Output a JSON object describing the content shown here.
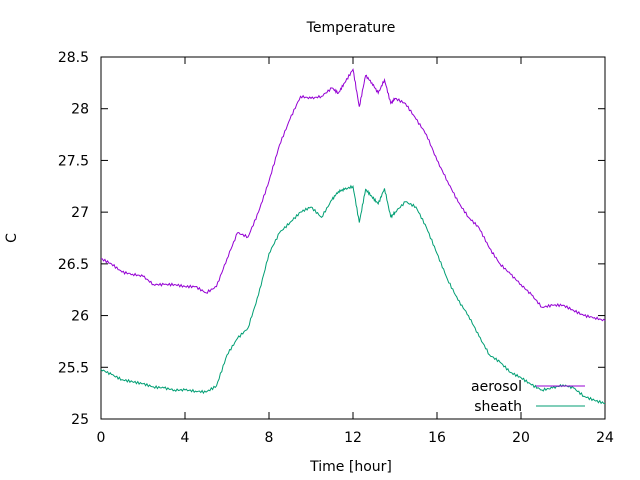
{
  "chart_data": {
    "type": "line",
    "title": "Temperature",
    "xlabel": "Time [hour]",
    "ylabel": "C",
    "xlim": [
      0,
      24
    ],
    "ylim": [
      25,
      28.5
    ],
    "xticks": [
      0,
      4,
      8,
      12,
      16,
      20,
      24
    ],
    "yticks": [
      25,
      25.5,
      26,
      26.5,
      27,
      27.5,
      28,
      28.5
    ],
    "xtick_labels": [
      "0",
      "4",
      "8",
      "12",
      "16",
      "20",
      "24"
    ],
    "ytick_labels": [
      "25",
      "25.5",
      "26",
      "26.5",
      "27",
      "27.5",
      "28",
      "28.5"
    ],
    "grid": false,
    "legend_position": "bottom-right",
    "series": [
      {
        "name": "aerosol",
        "color": "#9400d3",
        "x": [
          0,
          0.5,
          1,
          1.5,
          2,
          2.5,
          3,
          3.5,
          4,
          4.5,
          5,
          5.5,
          6,
          6.5,
          7,
          7.5,
          8,
          8.5,
          9,
          9.5,
          10,
          10.5,
          11,
          11.3,
          11.6,
          12,
          12.3,
          12.6,
          12.9,
          13.2,
          13.5,
          13.8,
          14,
          14.5,
          15,
          15.5,
          16,
          16.5,
          17,
          17.5,
          18,
          18.5,
          19,
          19.5,
          20,
          20.5,
          21,
          21.5,
          22,
          22.5,
          23,
          23.5,
          24
        ],
        "y": [
          26.55,
          26.5,
          26.42,
          26.4,
          26.38,
          26.3,
          26.3,
          26.3,
          26.28,
          26.28,
          26.22,
          26.28,
          26.55,
          26.8,
          26.76,
          27.0,
          27.3,
          27.65,
          27.9,
          28.12,
          28.1,
          28.12,
          28.2,
          28.15,
          28.25,
          28.38,
          28.02,
          28.32,
          28.25,
          28.15,
          28.28,
          28.05,
          28.1,
          28.05,
          27.9,
          27.75,
          27.5,
          27.3,
          27.1,
          26.95,
          26.85,
          26.65,
          26.5,
          26.4,
          26.3,
          26.2,
          26.08,
          26.1,
          26.1,
          26.05,
          26.0,
          25.98,
          25.95
        ]
      },
      {
        "name": "sheath",
        "color": "#009e73",
        "x": [
          0,
          0.5,
          1,
          1.5,
          2,
          2.5,
          3,
          3.5,
          4,
          4.5,
          5,
          5.5,
          6,
          6.5,
          7,
          7.5,
          8,
          8.5,
          9,
          9.5,
          10,
          10.5,
          11,
          11.3,
          11.6,
          12,
          12.3,
          12.6,
          12.9,
          13.2,
          13.5,
          13.8,
          14,
          14.5,
          15,
          15.5,
          16,
          16.5,
          17,
          17.5,
          18,
          18.5,
          19,
          19.5,
          20,
          20.5,
          21,
          21.5,
          22,
          22.5,
          23,
          23.5,
          24
        ],
        "y": [
          25.48,
          25.43,
          25.38,
          25.36,
          25.34,
          25.31,
          25.3,
          25.28,
          25.28,
          25.27,
          25.26,
          25.32,
          25.62,
          25.78,
          25.88,
          26.2,
          26.6,
          26.8,
          26.9,
          27.0,
          27.05,
          26.95,
          27.12,
          27.2,
          27.22,
          27.25,
          26.9,
          27.22,
          27.15,
          27.08,
          27.23,
          26.95,
          27.0,
          27.1,
          27.05,
          26.85,
          26.6,
          26.35,
          26.15,
          26.0,
          25.8,
          25.62,
          25.55,
          25.45,
          25.4,
          25.33,
          25.28,
          25.3,
          25.33,
          25.3,
          25.22,
          25.18,
          25.15
        ]
      }
    ]
  }
}
